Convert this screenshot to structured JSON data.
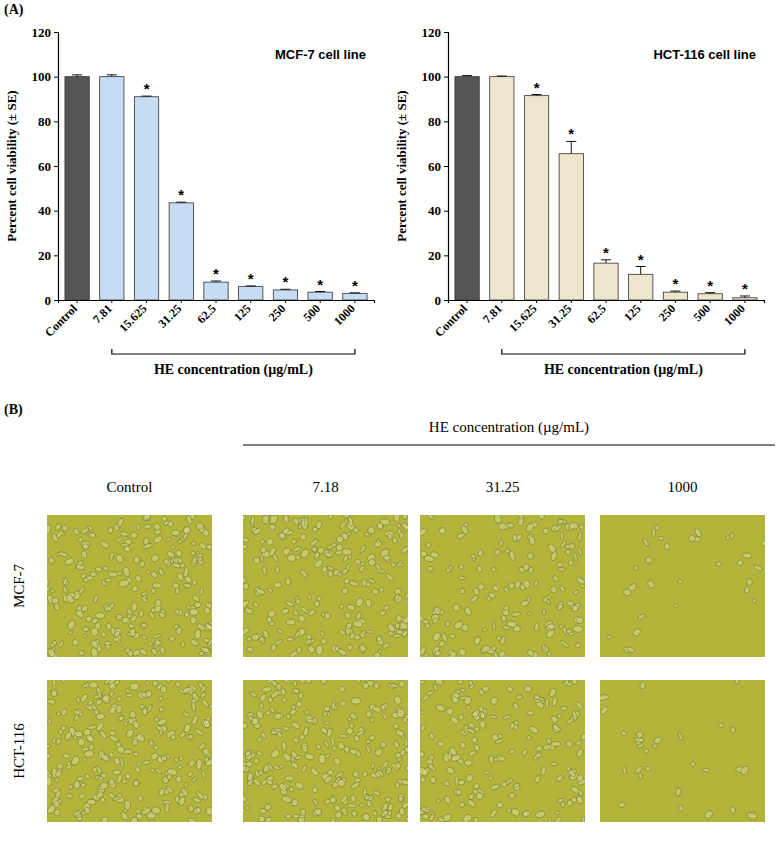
{
  "chart_data": [
    {
      "type": "bar",
      "title": "MCF-7 cell line",
      "x_label": "HE concentration (µg/mL)",
      "y_label": "Percent cell viability (± SE)",
      "categories": [
        "Control",
        "7.81",
        "15.625",
        "31.25",
        "62.5",
        "125",
        "250",
        "500",
        "1000"
      ],
      "values": [
        100,
        100,
        91,
        43.5,
        8,
        6,
        4.5,
        3.5,
        3
      ],
      "errors": [
        0.8,
        0.8,
        0.3,
        0.3,
        0.5,
        0.3,
        0.3,
        0.3,
        0.2
      ],
      "annotations": [
        null,
        null,
        "*",
        "*",
        "*",
        "*",
        "*",
        "*",
        "*"
      ],
      "colors": [
        "#555555",
        "#c6dcf2",
        "#c6dcf2",
        "#c6dcf2",
        "#c6dcf2",
        "#c6dcf2",
        "#c6dcf2",
        "#c6dcf2",
        "#c6dcf2"
      ],
      "ylim": [
        0,
        120
      ],
      "yticks": [
        0,
        20,
        40,
        60,
        80,
        100,
        120
      ],
      "grid": false
    },
    {
      "type": "bar",
      "title": "HCT-116 cell line",
      "x_label": "HE concentration (µg/mL)",
      "y_label": "Percent cell viability (± SE)",
      "categories": [
        "Control",
        "7.81",
        "15.625",
        "31.25",
        "62.5",
        "125",
        "250",
        "500",
        "1000"
      ],
      "values": [
        100,
        100,
        91.5,
        65.5,
        16.5,
        11.5,
        3.5,
        2.8,
        1
      ],
      "errors": [
        0.5,
        0.3,
        0.5,
        5.5,
        1.5,
        3.5,
        0.5,
        0.5,
        0.8
      ],
      "annotations": [
        null,
        null,
        "*",
        "*",
        "*",
        "*",
        "*",
        "*",
        "*"
      ],
      "colors": [
        "#555555",
        "#ede6cc",
        "#ede6cc",
        "#ede6cc",
        "#ede6cc",
        "#ede6cc",
        "#ede6cc",
        "#ede6cc",
        "#ede6cc"
      ],
      "ylim": [
        0,
        120
      ],
      "yticks": [
        0,
        20,
        40,
        60,
        80,
        100,
        120
      ],
      "grid": false
    }
  ],
  "panel_a": {
    "label": "(A)"
  },
  "panel_b": {
    "label": "(B)",
    "header": "HE concentration (µg/mL)",
    "columns": [
      "Control",
      "7.18",
      "31.25",
      "1000"
    ],
    "rows": [
      "MCF-7",
      "HCT-116"
    ]
  }
}
